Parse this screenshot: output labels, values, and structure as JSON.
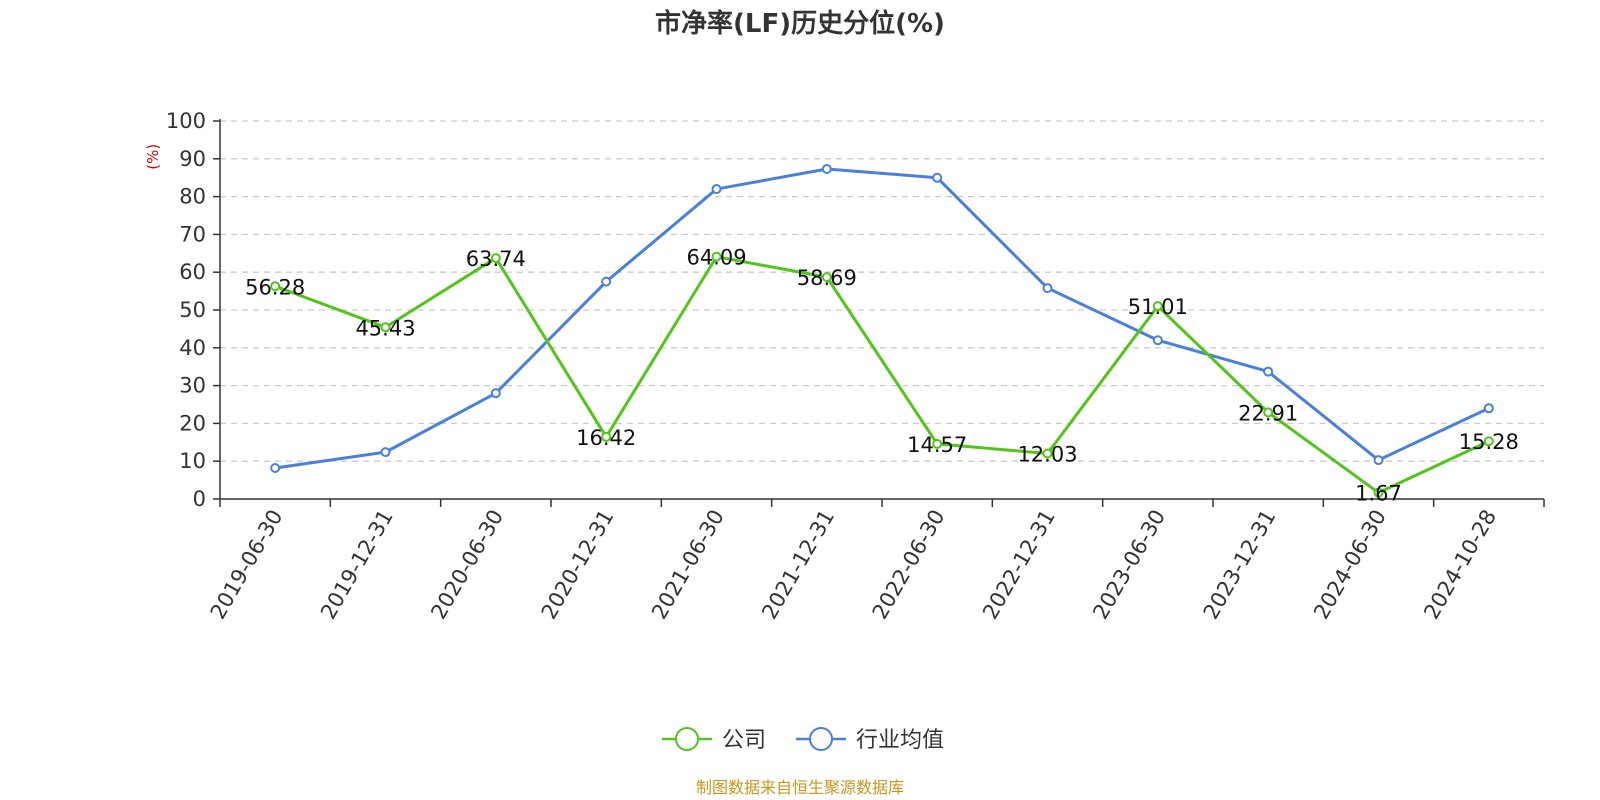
{
  "chart_data": {
    "type": "line",
    "title": "市净率(LF)历史分位(%)",
    "ylabel": "(%)",
    "ylim": [
      0,
      100
    ],
    "yticks": [
      0,
      10,
      20,
      30,
      40,
      50,
      60,
      70,
      80,
      90,
      100
    ],
    "categories": [
      "2019-06-30",
      "2019-12-31",
      "2020-06-30",
      "2020-12-31",
      "2021-06-30",
      "2021-12-31",
      "2022-06-30",
      "2022-12-31",
      "2023-06-30",
      "2023-12-31",
      "2024-06-30",
      "2024-10-28"
    ],
    "grid": true,
    "legend_position": "bottom-center",
    "series": [
      {
        "name": "公司",
        "color": "#52c41a",
        "show_labels": true,
        "values": [
          56.28,
          45.43,
          63.74,
          16.42,
          64.09,
          58.69,
          14.57,
          12.03,
          51.01,
          22.91,
          1.67,
          15.28
        ]
      },
      {
        "name": "行业均值",
        "color": "#4a7fdb",
        "show_labels": false,
        "values": [
          8.2,
          12.4,
          28.0,
          57.5,
          82.0,
          87.3,
          85.0,
          55.8,
          42.0,
          33.7,
          10.3,
          24.0
        ]
      }
    ],
    "source": "制图数据来自恒生聚源数据库"
  }
}
